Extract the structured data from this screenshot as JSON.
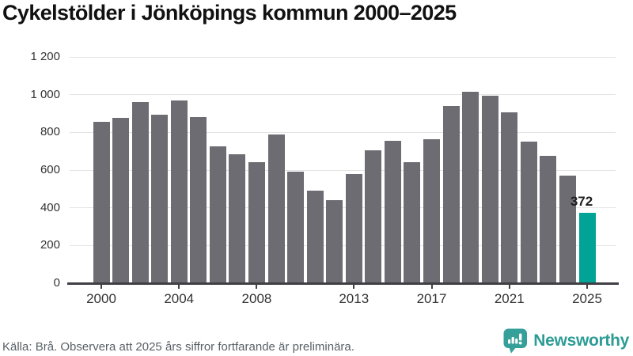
{
  "title": "Cykelstölder i Jönköpings kommun 2000–2025",
  "footer": {
    "source": "Källa: Brå. Observera att 2025 års siffror fortfarande är preliminära.",
    "brand": "Newsworthy"
  },
  "colors": {
    "bar": "#6d6c72",
    "highlight": "#00a396",
    "grid": "#e4e4e4",
    "axis": "#3f3f44",
    "title": "#111111",
    "tick_label": "#333333",
    "value_label": "#1f1f1f",
    "source_text": "#596066",
    "brand": "#2d9c95",
    "logo": "#35a099"
  },
  "chart_data": {
    "type": "bar",
    "title": "Cykelstölder i Jönköpings kommun 2000–2025",
    "xlabel": "",
    "ylabel": "",
    "categories": [
      2000,
      2001,
      2002,
      2003,
      2004,
      2005,
      2006,
      2007,
      2008,
      2009,
      2010,
      2011,
      2012,
      2013,
      2014,
      2015,
      2016,
      2017,
      2018,
      2019,
      2020,
      2021,
      2022,
      2023,
      2024,
      2025
    ],
    "values": [
      855,
      875,
      960,
      895,
      970,
      880,
      725,
      685,
      640,
      790,
      590,
      490,
      440,
      580,
      705,
      755,
      640,
      765,
      940,
      1015,
      995,
      905,
      750,
      675,
      570,
      372
    ],
    "highlight_category": 2025,
    "highlight_value_label": "372",
    "ylim": [
      0,
      1200
    ],
    "y_ticks": [
      0,
      200,
      400,
      600,
      800,
      1000,
      1200
    ],
    "y_tick_labels": [
      "0",
      "200",
      "400",
      "600",
      "800",
      "1 000",
      "1 200"
    ],
    "x_tick_years": [
      2000,
      2004,
      2008,
      2013,
      2017,
      2021,
      2025
    ],
    "grid": true,
    "legend": "none"
  }
}
